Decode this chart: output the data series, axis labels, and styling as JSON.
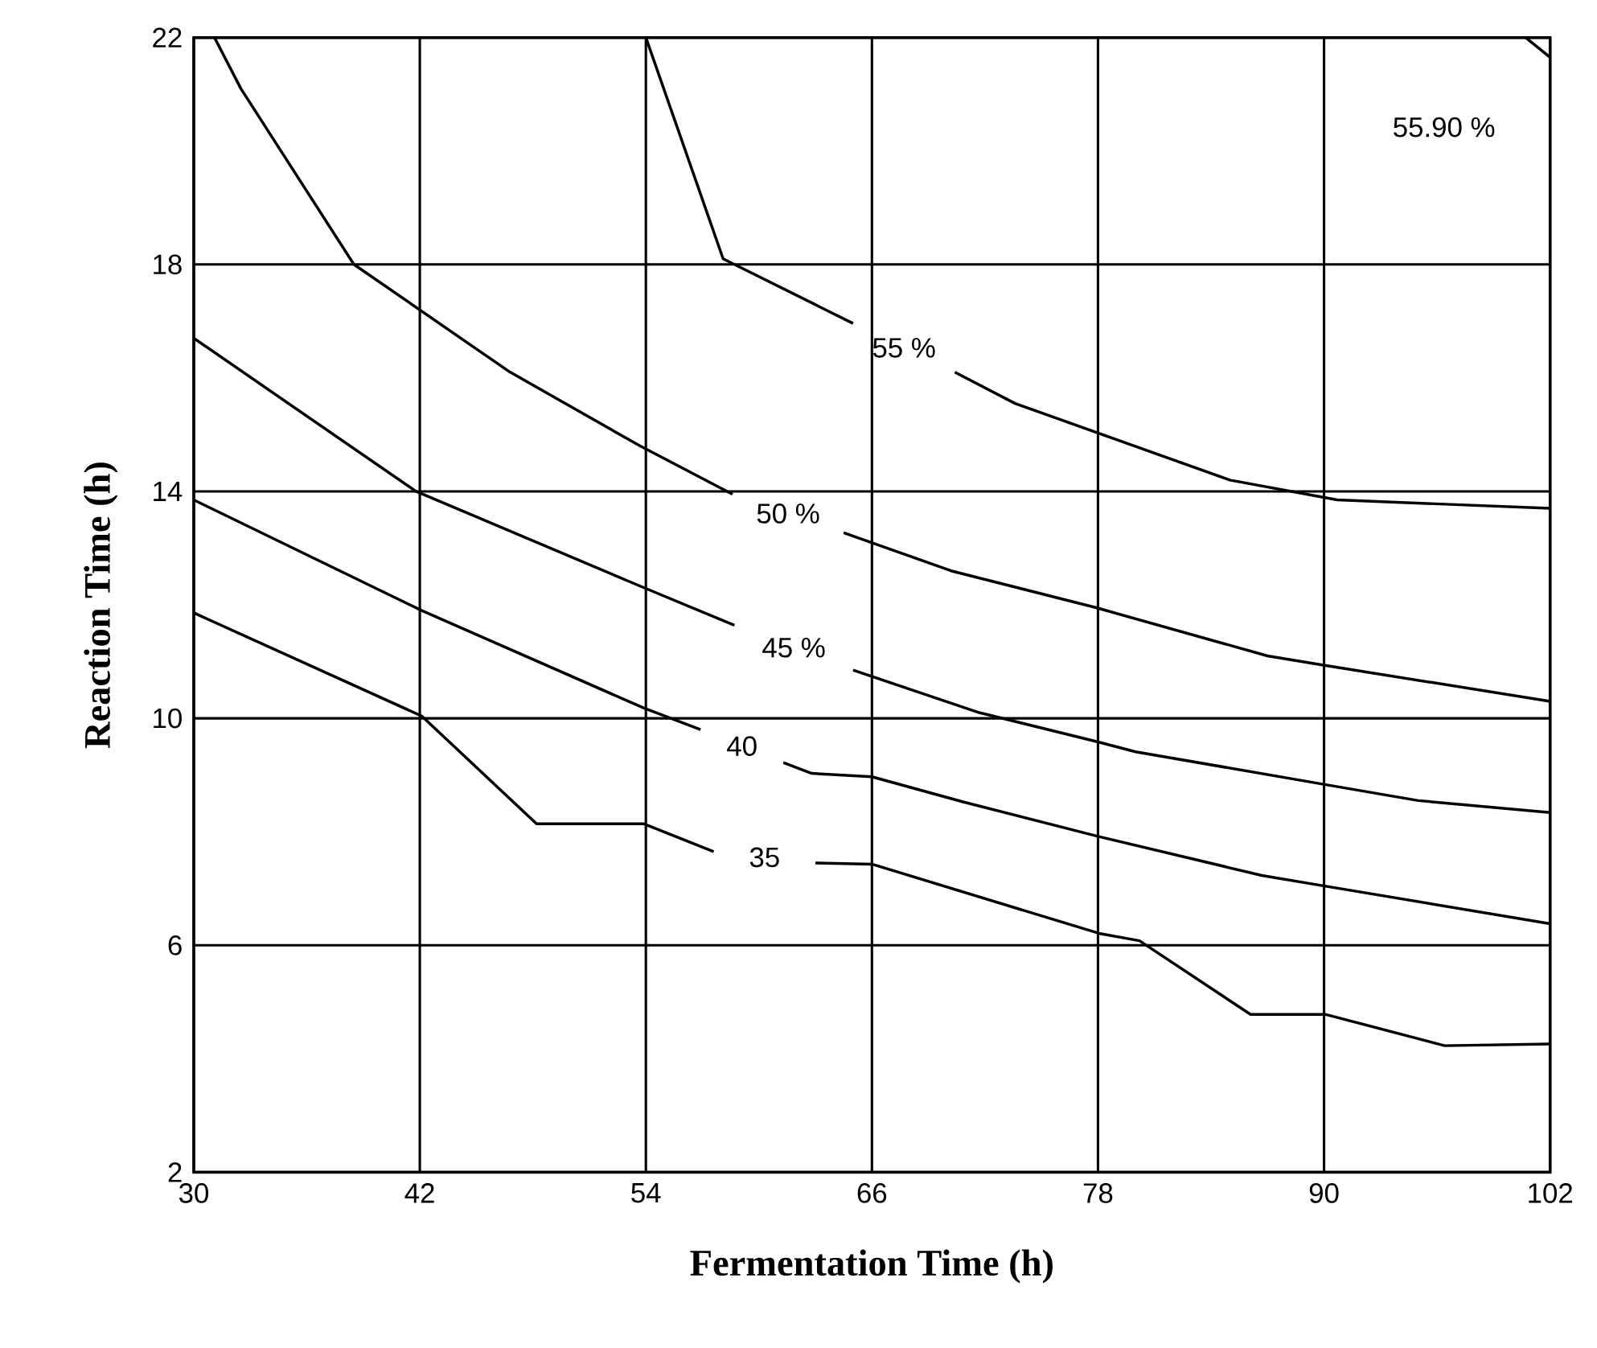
{
  "chart_data": {
    "type": "line",
    "xlabel": "Fermentation Time (h)",
    "ylabel": "Reaction Time (h)",
    "xlim": [
      30,
      102
    ],
    "ylim": [
      2,
      22
    ],
    "xticks": [
      30,
      42,
      54,
      66,
      78,
      90,
      102
    ],
    "yticks": [
      2,
      6,
      10,
      14,
      18,
      22
    ],
    "grid": true,
    "marker": "none",
    "line_style": "solid",
    "series": [
      {
        "name": "35",
        "color": "#000000",
        "x": [
          30,
          42.1,
          48.2,
          53.9,
          57.6,
          null,
          63,
          66,
          78.05,
          80.2,
          86.1,
          90.1,
          96.4,
          102
        ],
        "values": [
          11.86,
          10.04,
          8.14,
          8.14,
          7.65,
          null,
          7.45,
          7.43,
          6.21,
          6.08,
          4.78,
          4.78,
          4.23,
          4.26
        ]
      },
      {
        "name": "40",
        "color": "#000000",
        "x": [
          30,
          42.1,
          53.9,
          56.9,
          null,
          61.3,
          62.8,
          66,
          70.8,
          78,
          86.7,
          90.1,
          102
        ],
        "values": [
          13.85,
          11.9,
          10.18,
          9.8,
          null,
          9.22,
          9.03,
          8.97,
          8.53,
          7.92,
          7.23,
          7.04,
          6.38
        ]
      },
      {
        "name": "45 %",
        "color": "#000000",
        "x": [
          30,
          41.8,
          53.7,
          58.7,
          null,
          65,
          71.7,
          78.05,
          80,
          90.1,
          95,
          102
        ],
        "values": [
          16.7,
          14.0,
          12.33,
          11.64,
          null,
          10.85,
          10.1,
          9.58,
          9.41,
          8.83,
          8.55,
          8.34
        ]
      },
      {
        "name": "50 %",
        "color": "#000000",
        "x": [
          31.1,
          32.5,
          38.5,
          46.8,
          53.7,
          58.6,
          null,
          64.5,
          70.2,
          77.9,
          87,
          90.1,
          102
        ],
        "values": [
          22,
          21.1,
          18.0,
          16.1,
          14.8,
          13.95,
          null,
          13.27,
          12.6,
          11.95,
          11.1,
          10.93,
          10.3
        ]
      },
      {
        "name": "55 %",
        "color": "#000000",
        "x": [
          54,
          58.1,
          65,
          null,
          70.4,
          73.6,
          85,
          90.7,
          102
        ],
        "values": [
          22,
          18.1,
          16.96,
          null,
          16.1,
          15.55,
          14.2,
          13.85,
          13.7
        ]
      },
      {
        "color": "#000000",
        "x": [
          100.7,
          102
        ],
        "values": [
          22,
          21.65
        ]
      }
    ],
    "annotations": [
      "55.90 %"
    ]
  }
}
